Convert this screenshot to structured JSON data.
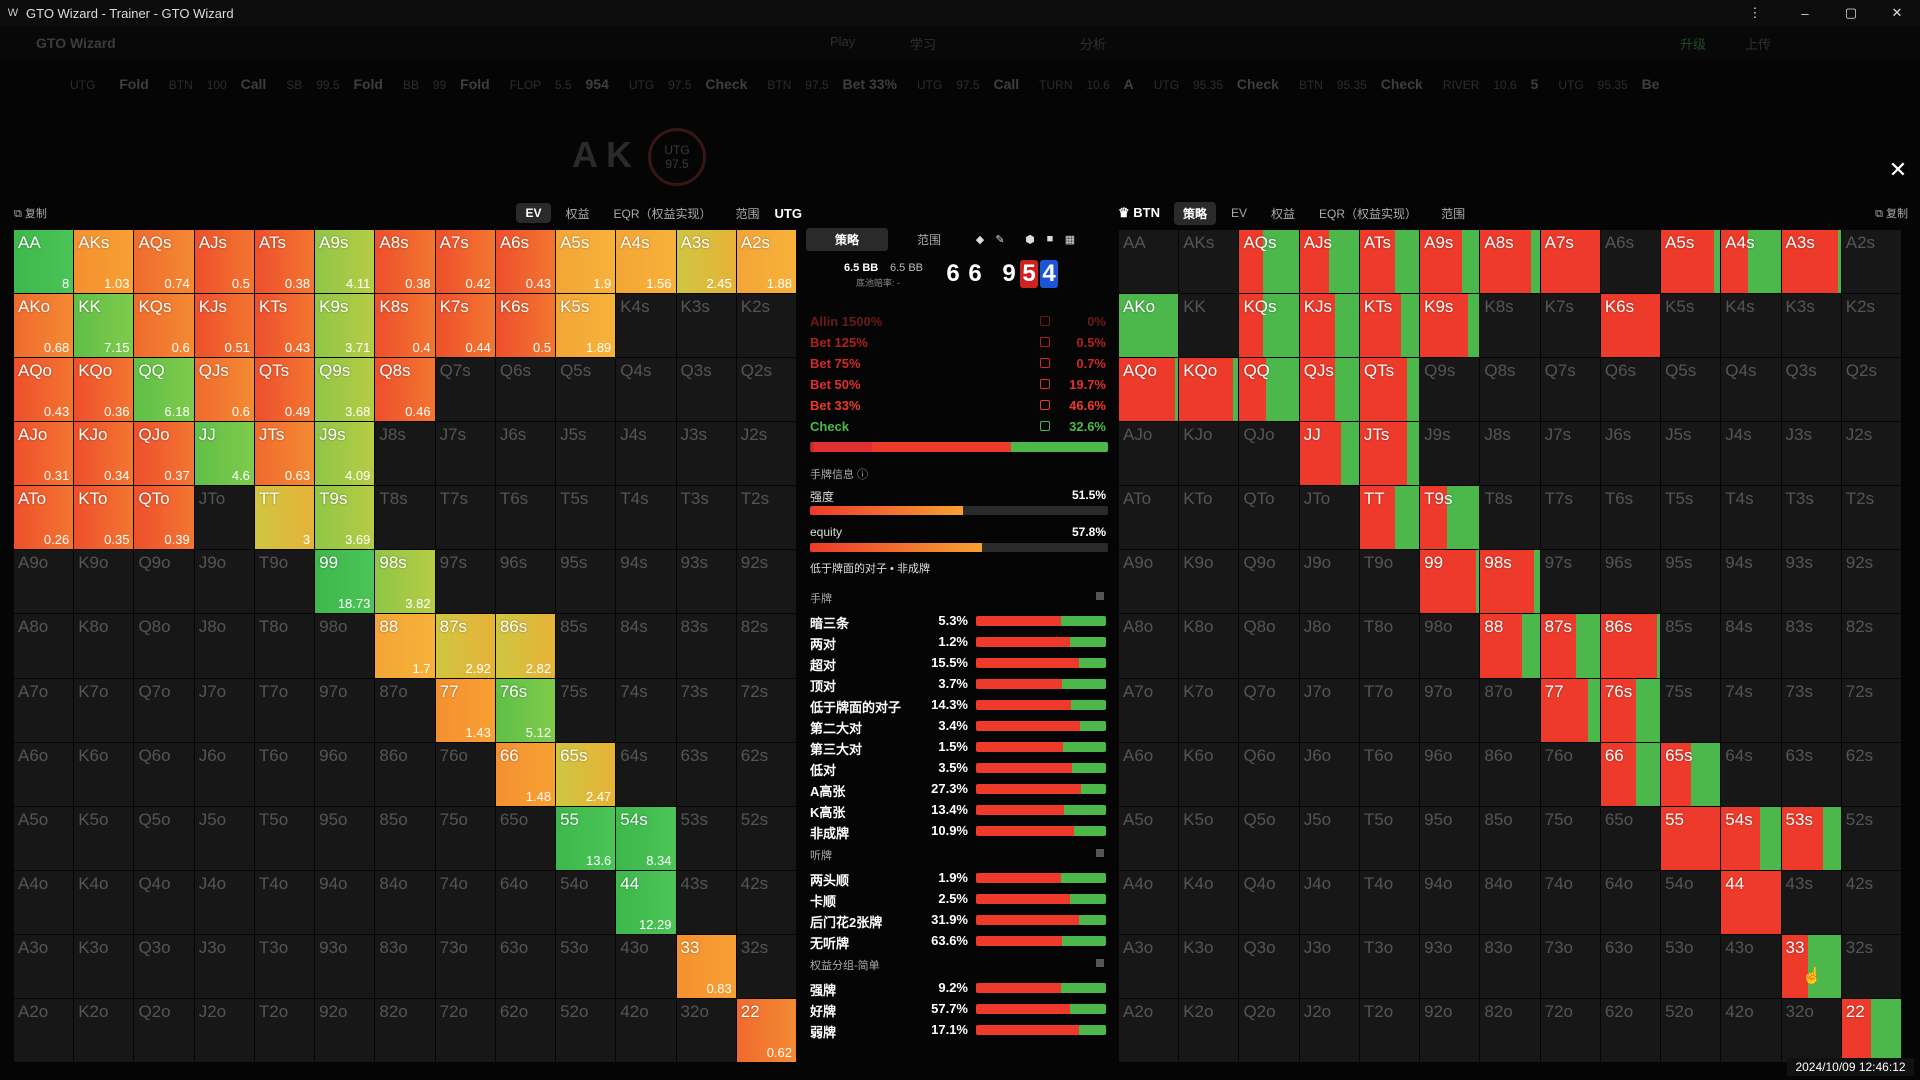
{
  "titlebar": {
    "title": "GTO Wizard - Trainer - GTO Wizard",
    "logo": "W",
    "menu": "⋮",
    "min": "–",
    "max": "▢",
    "close": "✕"
  },
  "appbar": {
    "brand": "GTO Wizard",
    "nav": [
      "Play",
      "学习",
      "分析"
    ],
    "upgrade": "升级",
    "upload": "上传"
  },
  "actionbar": [
    {
      "pos": "UTG",
      "stack": "",
      "act": "Fold"
    },
    {
      "pos": "BTN",
      "stack": "100",
      "act": "Call"
    },
    {
      "pos": "SB",
      "stack": "99.5",
      "act": "Fold"
    },
    {
      "pos": "BB",
      "stack": "99",
      "act": "Fold"
    },
    {
      "pos": "FLOP",
      "stack": "5.5",
      "act": "954"
    },
    {
      "pos": "UTG",
      "stack": "97.5",
      "act": "Check"
    },
    {
      "pos": "BTN",
      "stack": "97.5",
      "act": "Bet 33%"
    },
    {
      "pos": "UTG",
      "stack": "97.5",
      "act": "Call"
    },
    {
      "pos": "TURN",
      "stack": "10.6",
      "act": "A"
    },
    {
      "pos": "UTG",
      "stack": "95.35",
      "act": "Check"
    },
    {
      "pos": "BTN",
      "stack": "95.35",
      "act": "Check"
    },
    {
      "pos": "RIVER",
      "stack": "10.6",
      "act": "5"
    },
    {
      "pos": "UTG",
      "stack": "95.35",
      "act": "Be"
    }
  ],
  "ghost": {
    "cards": "AK",
    "pos": "UTG",
    "stack": "97.5"
  },
  "left": {
    "copy": "复制",
    "tabs": [
      "EV",
      "权益",
      "EQR（权益实现）",
      "范围"
    ],
    "active": "EV",
    "pos": "UTG"
  },
  "right": {
    "pos": "BTN",
    "tabs": [
      "策略",
      "EV",
      "权益",
      "EQR（权益实现）",
      "范围"
    ],
    "active": "策略",
    "copy": "复制"
  },
  "mid": {
    "tabs": [
      "策略",
      "范围"
    ],
    "stack1": "6.5 BB",
    "stack2": "6.5 BB",
    "stacksub": "底池赔率: -",
    "hand": [
      "6",
      "6"
    ],
    "board": [
      "9",
      "5",
      "4"
    ],
    "actions": [
      {
        "label": "Allin 1500%",
        "pct": "0%",
        "color": "#6b1a1a"
      },
      {
        "label": "Bet 125%",
        "pct": "0.5%",
        "color": "#b02020"
      },
      {
        "label": "Bet 75%",
        "pct": "0.7%",
        "color": "#d02a2a"
      },
      {
        "label": "Bet 50%",
        "pct": "19.7%",
        "color": "#e03030"
      },
      {
        "label": "Bet 33%",
        "pct": "46.6%",
        "color": "#ee3a2a"
      },
      {
        "label": "Check",
        "pct": "32.6%",
        "color": "#4cb84c"
      }
    ],
    "info_title": "手牌信息 ⓘ",
    "strength_label": "强度",
    "strength": "51.5%",
    "equity_label": "equity",
    "equity": "57.8%",
    "note": "低于牌面的对子 • 非成牌",
    "hands_title": "手牌",
    "hands": [
      {
        "l": "暗三条",
        "v": "5.3%"
      },
      {
        "l": "两对",
        "v": "1.2%"
      },
      {
        "l": "超对",
        "v": "15.5%"
      },
      {
        "l": "顶对",
        "v": "3.7%"
      },
      {
        "l": "低于牌面的对子",
        "v": "14.3%"
      },
      {
        "l": "第二大对",
        "v": "3.4%"
      },
      {
        "l": "第三大对",
        "v": "1.5%"
      },
      {
        "l": "低对",
        "v": "3.5%"
      },
      {
        "l": "A高张",
        "v": "27.3%"
      },
      {
        "l": "K高张",
        "v": "13.4%"
      },
      {
        "l": "非成牌",
        "v": "10.9%"
      }
    ],
    "draws_title": "听牌",
    "draws": [
      {
        "l": "两头顺",
        "v": "1.9%"
      },
      {
        "l": "卡顺",
        "v": "2.5%"
      },
      {
        "l": "后门花2张牌",
        "v": "31.9%"
      },
      {
        "l": "无听牌",
        "v": "63.6%"
      }
    ],
    "eq_title": "权益分组-简单",
    "eq": [
      {
        "l": "强牌",
        "v": "9.2%"
      },
      {
        "l": "好牌",
        "v": "57.7%"
      },
      {
        "l": "弱牌",
        "v": "17.1%"
      }
    ]
  },
  "timestamp": "2024/10/09 12:46:12",
  "left_ev": {
    "AA": "8",
    "AKs": "1.03",
    "AQs": "0.74",
    "AJs": "0.5",
    "ATs": "0.38",
    "A9s": "4.11",
    "A8s": "0.38",
    "A7s": "0.42",
    "A6s": "0.43",
    "A5s": "1.9",
    "A4s": "1.56",
    "A3s": "2.45",
    "A2s": "1.88",
    "AKo": "0.68",
    "KK": "7.15",
    "KQs": "0.6",
    "KJs": "0.51",
    "KTs": "0.43",
    "K9s": "3.71",
    "K8s": "0.4",
    "K7s": "0.44",
    "K6s": "0.5",
    "K5s": "1.89",
    "AQo": "0.43",
    "KQo": "0.36",
    "QQ": "6.18",
    "QJs": "0.6",
    "QTs": "0.49",
    "Q9s": "3.68",
    "Q8s": "0.46",
    "AJo": "0.31",
    "KJo": "0.34",
    "QJo": "0.37",
    "JJ": "4.6",
    "JTs": "0.63",
    "J9s": "4.09",
    "ATo": "0.26",
    "KTo": "0.35",
    "QTo": "0.39",
    "TT": "3",
    "T9s": "3.69",
    "99": "18.73",
    "98s": "3.82",
    "88": "1.7",
    "87s": "2.92",
    "86s": "2.82",
    "77": "1.43",
    "76s": "5.12",
    "66": "1.48",
    "65s": "2.47",
    "55": "13.6",
    "54s": "8.34",
    "44": "12.29",
    "33": "0.83",
    "22": "0.62"
  }
}
